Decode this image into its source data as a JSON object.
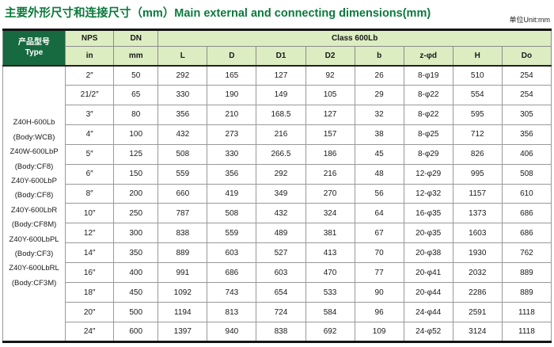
{
  "page": {
    "title": "主要外形尺寸和连接尺寸（mm）Main external and connecting dimensions(mm)",
    "unit_note": "单位Unit:mm"
  },
  "colors": {
    "title_green": "#0a7a3c",
    "header_dark_green": "#17693f",
    "header_light_green": "#dcedc2",
    "grid_line": "#999999",
    "outer_border": "#141414"
  },
  "table": {
    "headers": {
      "type_line1": "产品型号",
      "type_line2": "Type",
      "nps": "NPS",
      "nps_unit": "in",
      "dn": "DN",
      "dn_unit": "mm",
      "class_span": "Class 600Lb",
      "dim_columns": [
        "L",
        "D",
        "D1",
        "D2",
        "b",
        "z-φd",
        "H",
        "Do"
      ]
    },
    "product_types": [
      "Z40H-600Lb",
      "(Body:WCB)",
      "Z40W-600LbP",
      "(Body:CF8)",
      "Z40Y-600LbP",
      "(Body:CF8)",
      "Z40Y-600LbR",
      "(Body:CF8M)",
      "Z40Y-600LbPL",
      "(Body:CF3)",
      "Z40Y-600LbRL",
      "(Body:CF3M)"
    ],
    "rows": [
      {
        "nps": "2″",
        "dn": "50",
        "L": "292",
        "D": "165",
        "D1": "127",
        "D2": "92",
        "b": "26",
        "zd": "8-φ19",
        "H": "510",
        "Do": "254"
      },
      {
        "nps": "21/2″",
        "dn": "65",
        "L": "330",
        "D": "190",
        "D1": "149",
        "D2": "105",
        "b": "29",
        "zd": "8-φ22",
        "H": "554",
        "Do": "254"
      },
      {
        "nps": "3″",
        "dn": "80",
        "L": "356",
        "D": "210",
        "D1": "168.5",
        "D2": "127",
        "b": "32",
        "zd": "8-φ22",
        "H": "595",
        "Do": "305"
      },
      {
        "nps": "4″",
        "dn": "100",
        "L": "432",
        "D": "273",
        "D1": "216",
        "D2": "157",
        "b": "38",
        "zd": "8-φ25",
        "H": "712",
        "Do": "356"
      },
      {
        "nps": "5″",
        "dn": "125",
        "L": "508",
        "D": "330",
        "D1": "266.5",
        "D2": "186",
        "b": "45",
        "zd": "8-φ29",
        "H": "826",
        "Do": "406"
      },
      {
        "nps": "6″",
        "dn": "150",
        "L": "559",
        "D": "356",
        "D1": "292",
        "D2": "216",
        "b": "48",
        "zd": "12-φ29",
        "H": "995",
        "Do": "508"
      },
      {
        "nps": "8″",
        "dn": "200",
        "L": "660",
        "D": "419",
        "D1": "349",
        "D2": "270",
        "b": "56",
        "zd": "12-φ32",
        "H": "1157",
        "Do": "610"
      },
      {
        "nps": "10″",
        "dn": "250",
        "L": "787",
        "D": "508",
        "D1": "432",
        "D2": "324",
        "b": "64",
        "zd": "16-φ35",
        "H": "1373",
        "Do": "686"
      },
      {
        "nps": "12″",
        "dn": "300",
        "L": "838",
        "D": "559",
        "D1": "489",
        "D2": "381",
        "b": "67",
        "zd": "20-φ35",
        "H": "1603",
        "Do": "686"
      },
      {
        "nps": "14″",
        "dn": "350",
        "L": "889",
        "D": "603",
        "D1": "527",
        "D2": "413",
        "b": "70",
        "zd": "20-φ38",
        "H": "1930",
        "Do": "762"
      },
      {
        "nps": "16″",
        "dn": "400",
        "L": "991",
        "D": "686",
        "D1": "603",
        "D2": "470",
        "b": "77",
        "zd": "20-φ41",
        "H": "2032",
        "Do": "889"
      },
      {
        "nps": "18″",
        "dn": "450",
        "L": "1092",
        "D": "743",
        "D1": "654",
        "D2": "533",
        "b": "90",
        "zd": "20-φ44",
        "H": "2286",
        "Do": "889"
      },
      {
        "nps": "20″",
        "dn": "500",
        "L": "1194",
        "D": "813",
        "D1": "724",
        "D2": "584",
        "b": "96",
        "zd": "24-φ44",
        "H": "2591",
        "Do": "1118"
      },
      {
        "nps": "24″",
        "dn": "600",
        "L": "1397",
        "D": "940",
        "D1": "838",
        "D2": "692",
        "b": "109",
        "zd": "24-φ52",
        "H": "3124",
        "Do": "1118"
      }
    ]
  }
}
